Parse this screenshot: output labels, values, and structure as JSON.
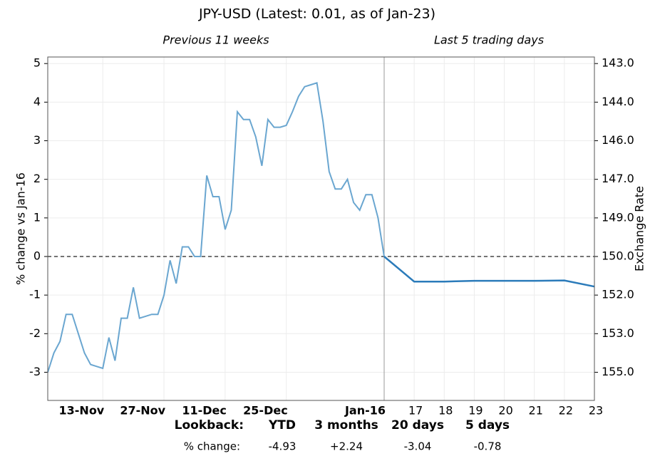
{
  "chart_data": {
    "type": "line",
    "title": "JPY-USD (Latest: 0.01, as of Jan-23)",
    "subtitle_left": "Previous 11 weeks",
    "subtitle_right": "Last 5 trading days",
    "ylabel": "% change vs Jan-16",
    "y2label": "Exchange Rate",
    "ylim": [
      -3.73,
      5.17
    ],
    "yticks": [
      -3,
      -2,
      -1,
      0,
      1,
      2,
      3,
      4,
      5
    ],
    "y2ticks": [
      {
        "value": 155,
        "label": "155.0"
      },
      {
        "value": 153,
        "label": "153.0"
      },
      {
        "value": 152,
        "label": "152.0"
      },
      {
        "value": 150,
        "label": "150.0"
      },
      {
        "value": 149,
        "label": "149.0"
      },
      {
        "value": 147,
        "label": "147.0"
      },
      {
        "value": 146,
        "label": "146.0"
      },
      {
        "value": 144,
        "label": "144.0"
      },
      {
        "value": 143,
        "label": "143.0"
      }
    ],
    "grid": true,
    "panels": [
      {
        "color": "#6aa6d0",
        "categories": [
          null,
          null,
          null,
          null,
          null,
          null,
          null,
          null,
          null,
          "13-Nov",
          null,
          null,
          null,
          null,
          null,
          null,
          null,
          null,
          null,
          "27-Nov",
          null,
          null,
          null,
          null,
          null,
          null,
          null,
          null,
          null,
          "11-Dec",
          null,
          null,
          null,
          null,
          null,
          null,
          null,
          null,
          null,
          "25-Dec",
          null,
          null,
          null,
          null,
          null,
          null,
          null,
          null,
          null,
          null,
          null,
          null,
          null,
          null,
          null,
          "Jan-16"
        ],
        "values": [
          -3.0,
          -2.5,
          -2.2,
          -1.5,
          -1.5,
          -2.0,
          -2.5,
          -2.8,
          -2.85,
          -2.9,
          -2.1,
          -2.7,
          -1.6,
          -1.6,
          -0.8,
          -1.6,
          -1.55,
          -1.5,
          -1.5,
          -1.0,
          -0.1,
          -0.7,
          0.25,
          0.25,
          0.0,
          0.0,
          2.1,
          1.55,
          1.55,
          0.7,
          1.2,
          3.75,
          3.55,
          3.55,
          3.1,
          2.35,
          3.55,
          3.35,
          3.35,
          3.4,
          3.75,
          4.15,
          4.4,
          4.45,
          4.5,
          3.5,
          2.2,
          1.75,
          1.75,
          2.0,
          1.4,
          1.2,
          1.6,
          1.6,
          1.0,
          0.0
        ]
      },
      {
        "color": "#2b7bba",
        "categories": [
          null,
          "17",
          "18",
          "19",
          "20",
          "21",
          "22",
          "23"
        ],
        "values": [
          0.0,
          -0.65,
          -0.65,
          -0.63,
          -0.63,
          -0.63,
          -0.62,
          -0.78
        ]
      }
    ],
    "lookback": {
      "label": "Lookback:",
      "change_label": "% change:",
      "items": [
        {
          "name": "YTD",
          "change": "-4.93",
          "color": "#d62728"
        },
        {
          "name": "3 months",
          "change": "+2.24",
          "color": "#2ca02c"
        },
        {
          "name": "20 days",
          "change": "-3.04",
          "color": "#d62728"
        },
        {
          "name": "5 days",
          "change": "-0.78",
          "color": "#d62728"
        }
      ]
    }
  }
}
